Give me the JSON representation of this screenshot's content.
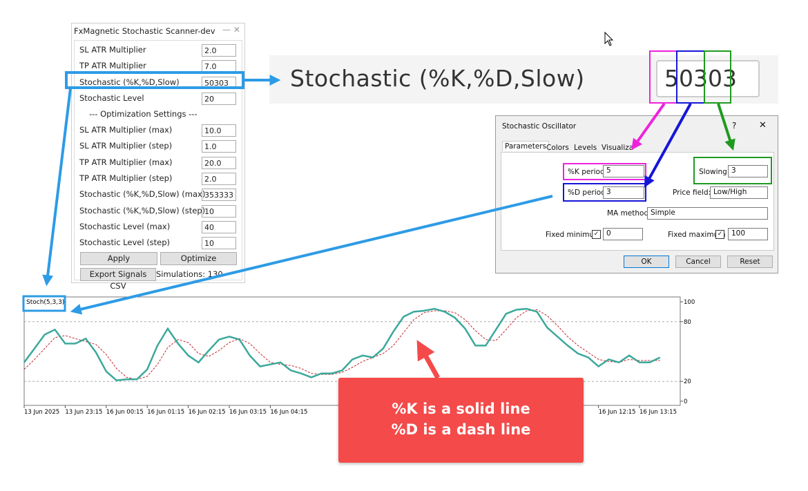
{
  "panel": {
    "title": "FxMagnetic Stochastic Scanner-dev",
    "rows": [
      {
        "label": "SL ATR Multiplier",
        "value": "2.0"
      },
      {
        "label": "TP ATR Multiplier",
        "value": "7.0"
      },
      {
        "label": "Stochastic (%K,%D,Slow)",
        "value": "50303"
      },
      {
        "label": "Stochastic Level",
        "value": "20"
      }
    ],
    "section": "--- Optimization Settings ---",
    "opt_rows": [
      {
        "label": "SL ATR Multiplier (max)",
        "value": "10.0"
      },
      {
        "label": "SL ATR Multiplier (step)",
        "value": "1.0"
      },
      {
        "label": "TP ATR Multiplier (max)",
        "value": "20.0"
      },
      {
        "label": "TP ATR Multiplier (step)",
        "value": "2.0"
      },
      {
        "label": "Stochastic (%K,%D,Slow) (max)",
        "value": "353333"
      },
      {
        "label": "Stochastic (%K,%D,Slow) (step)",
        "value": "10"
      },
      {
        "label": "Stochastic Level (max)",
        "value": "40"
      },
      {
        "label": "Stochastic Level (step)",
        "value": "10"
      }
    ],
    "buttons": [
      "Apply",
      "Optimize"
    ],
    "export_button": "Export Signals CSV",
    "status": "Simulations: 130"
  },
  "zoom": {
    "label": "Stochastic (%K,%D,Slow)",
    "value": "50303"
  },
  "dialog": {
    "title": "Stochastic Oscillator",
    "help": "?",
    "close": "✕",
    "tabs": [
      "Parameters",
      "Colors",
      "Levels",
      "Visualiza"
    ],
    "k_label": "%K period:",
    "k_value": "5",
    "d_label": "%D period:",
    "d_value": "3",
    "slowing_label": "Slowing:",
    "slowing_value": "3",
    "price_label": "Price field:",
    "price_value": "Low/High",
    "ma_label": "MA method:",
    "ma_value": "Simple",
    "min_label": "Fixed minimum",
    "min_value": "0",
    "max_label": "Fixed maximum",
    "max_value": "100",
    "buttons": [
      "OK",
      "Cancel",
      "Reset"
    ]
  },
  "callout": [
    "%K is a solid line",
    "%D is a dash line"
  ],
  "chart_data": {
    "type": "line",
    "title": "Stoch(5,3,3)",
    "categories": [
      "13 Jun 2025",
      null,
      null,
      null,
      "13 Jun 23:15",
      null,
      null,
      null,
      "16 Jun 00:15",
      null,
      null,
      null,
      "16 Jun 01:15",
      null,
      null,
      null,
      "16 Jun 02:15",
      null,
      null,
      null,
      "16 Jun 03:15",
      null,
      null,
      null,
      "16 Jun 04:15",
      null,
      null,
      null,
      null,
      null,
      null,
      null,
      null,
      null,
      null,
      null,
      null,
      null,
      null,
      null,
      null,
      null,
      null,
      null,
      null,
      null,
      null,
      null,
      null,
      null,
      null,
      null,
      null,
      null,
      null,
      null,
      "16 Jun 12:15",
      null,
      null,
      null,
      "16 Jun 13:15",
      null,
      null
    ],
    "series": [
      {
        "color": "#3aa89a",
        "dash": false,
        "values": [
          39,
          53,
          67,
          72,
          58,
          58,
          63,
          49,
          30,
          21,
          22,
          22,
          32,
          56,
          73,
          58,
          46,
          39,
          51,
          62,
          65,
          62,
          46,
          35,
          37,
          39,
          31,
          28,
          24,
          28,
          28,
          31,
          42,
          46,
          44,
          53,
          70,
          85,
          90,
          91,
          93,
          90,
          84,
          73,
          56,
          56,
          72,
          88,
          92,
          93,
          90,
          74,
          65,
          56,
          48,
          44,
          35,
          42,
          39,
          46,
          39,
          39,
          44
        ]
      },
      {
        "color": "#c0262c",
        "dash": true,
        "values": [
          32,
          42,
          53,
          64,
          66,
          63,
          60,
          57,
          47,
          33,
          24,
          22,
          25,
          37,
          54,
          62,
          59,
          48,
          45,
          51,
          59,
          63,
          58,
          48,
          39,
          37,
          36,
          33,
          28,
          27,
          27,
          29,
          34,
          40,
          44,
          48,
          56,
          69,
          82,
          89,
          91,
          91,
          89,
          82,
          71,
          62,
          61,
          72,
          84,
          91,
          92,
          86,
          76,
          65,
          56,
          49,
          42,
          40,
          39,
          42,
          41,
          41,
          41
        ]
      }
    ],
    "ylim": [
      0,
      100
    ],
    "yticks": [
      0,
      20,
      80,
      100
    ],
    "grid_ticks": [
      20,
      80
    ]
  }
}
